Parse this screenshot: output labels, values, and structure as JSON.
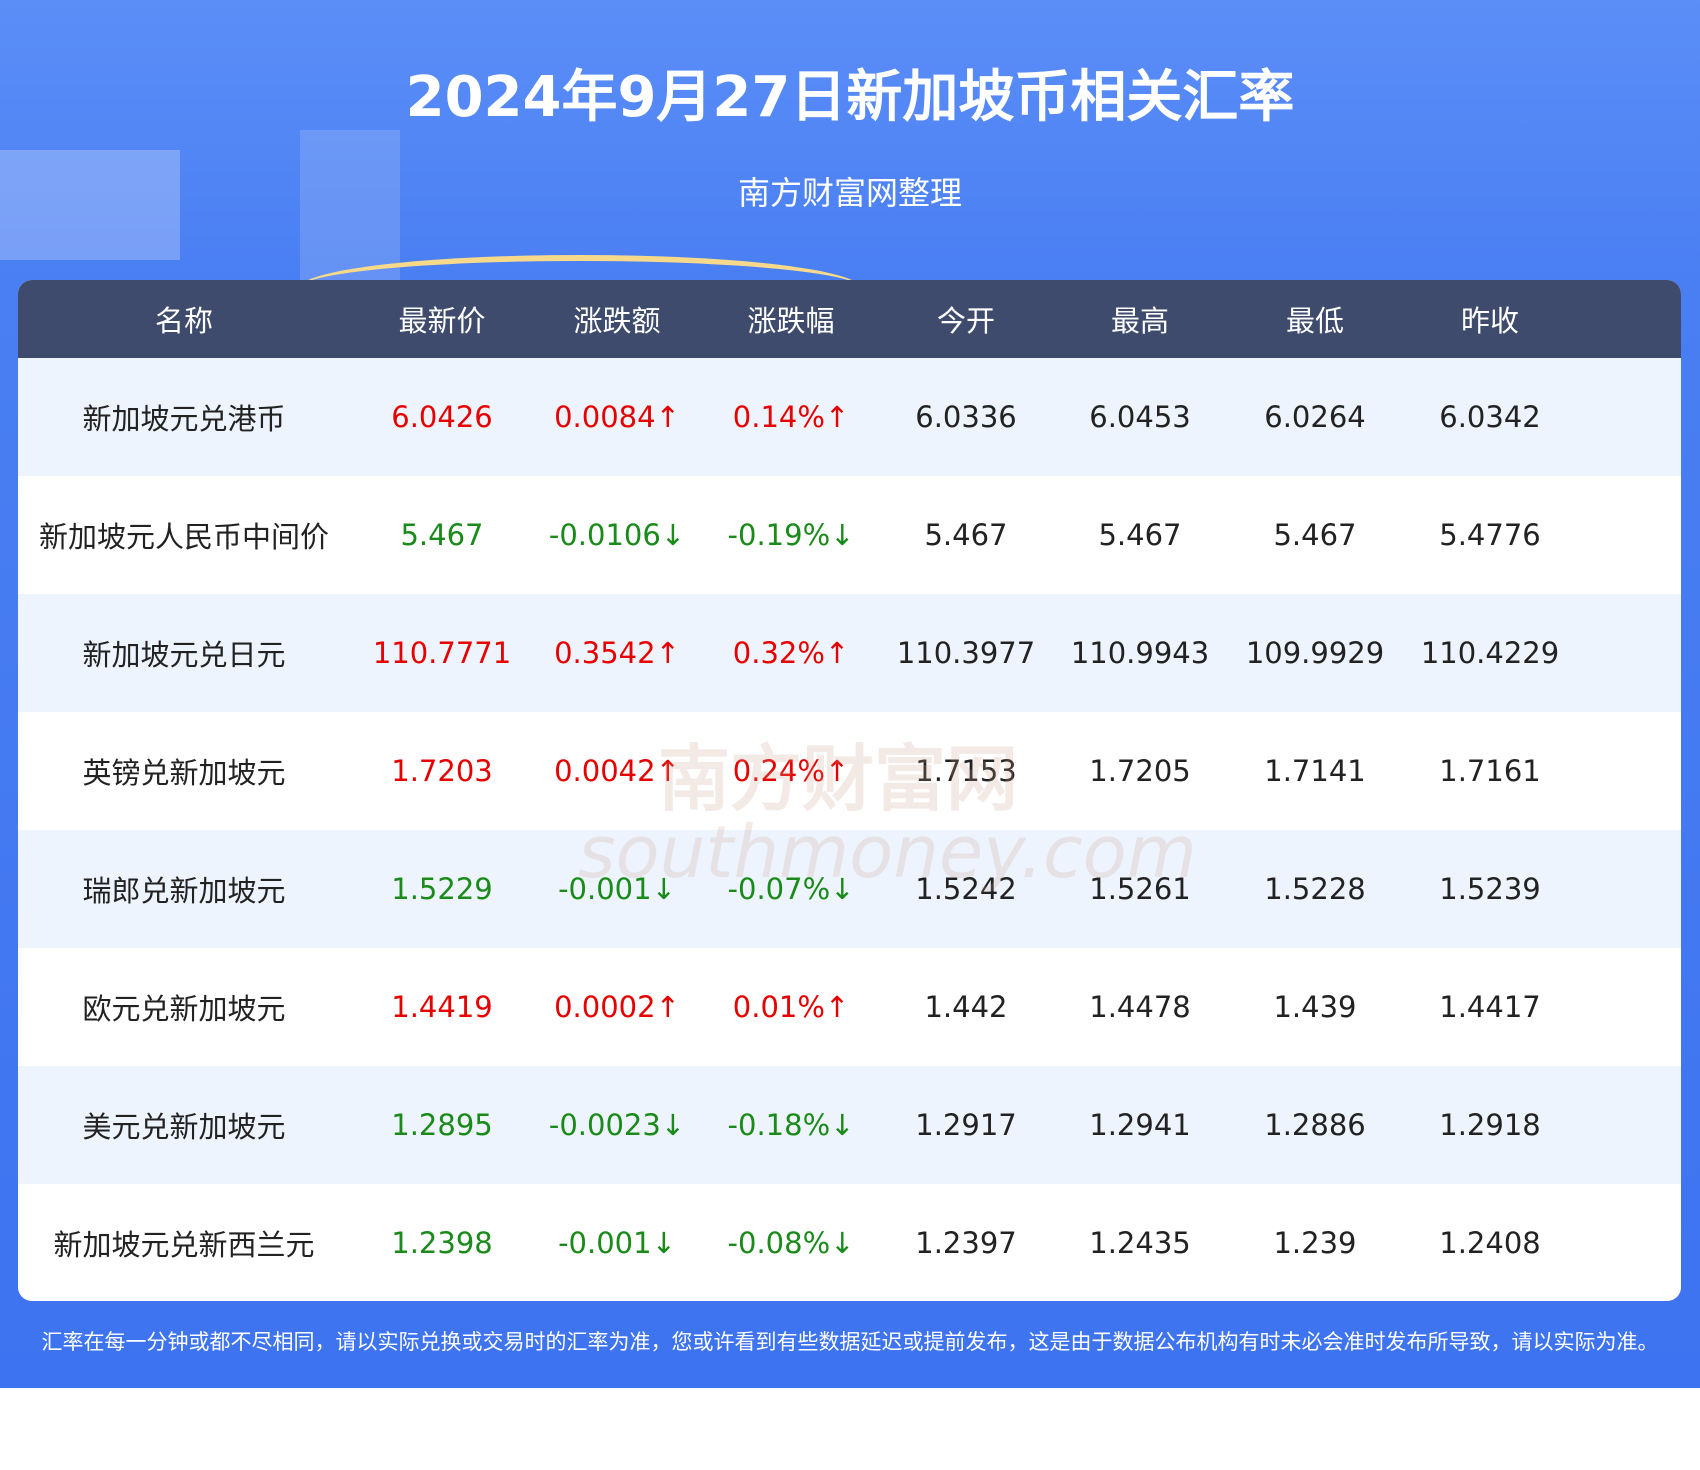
{
  "header": {
    "title": "2024年9月27日新加坡币相关汇率",
    "subtitle": "南方财富网整理"
  },
  "table": {
    "headers": [
      "名称",
      "最新价",
      "涨跌额",
      "涨跌幅",
      "今开",
      "最高",
      "最低",
      "昨收"
    ],
    "rows": [
      [
        "新加坡元兑港币",
        "6.0426",
        "0.0084↑",
        "0.14%↑",
        "6.0336",
        "6.0453",
        "6.0264",
        "6.0342"
      ],
      [
        "新加坡元人民币中间价",
        "5.467",
        "-0.0106↓",
        "-0.19%↓",
        "5.467",
        "5.467",
        "5.467",
        "5.4776"
      ],
      [
        "新加坡元兑日元",
        "110.7771",
        "0.3542↑",
        "0.32%↑",
        "110.3977",
        "110.9943",
        "109.9929",
        "110.4229"
      ],
      [
        "英镑兑新加坡元",
        "1.7203",
        "0.0042↑",
        "0.24%↑",
        "1.7153",
        "1.7205",
        "1.7141",
        "1.7161"
      ],
      [
        "瑞郎兑新加坡元",
        "1.5229",
        "-0.001↓",
        "-0.07%↓",
        "1.5242",
        "1.5261",
        "1.5228",
        "1.5239"
      ],
      [
        "欧元兑新加坡元",
        "1.4419",
        "0.0002↑",
        "0.01%↑",
        "1.442",
        "1.4478",
        "1.439",
        "1.4417"
      ],
      [
        "美元兑新加坡元",
        "1.2895",
        "-0.0023↓",
        "-0.18%↓",
        "1.2917",
        "1.2941",
        "1.2886",
        "1.2918"
      ],
      [
        "新加坡元兑新西兰元",
        "1.2398",
        "-0.001↓",
        "-0.08%↓",
        "1.2397",
        "1.2435",
        "1.239",
        "1.2408"
      ]
    ]
  },
  "watermark": [
    "南方财富网",
    "southmoney.com"
  ],
  "footer": {
    "note": "汇率在每一分钟或都不尽相同，请以实际兑换或交易时的汇率为准，您或许看到有些数据延迟或提前发布，这是由于数据公布机构有时未必会准时发布所导致，请以实际为准。"
  }
}
